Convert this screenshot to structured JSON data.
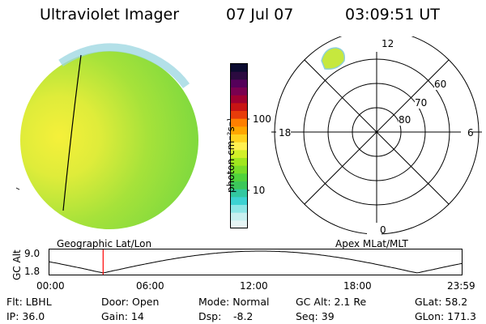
{
  "header": {
    "title": "Ultraviolet Imager",
    "date": "07 Jul 07",
    "time": "03:09:51 UT"
  },
  "colorbar": {
    "unit_label": "photon cm⁻²s⁻¹",
    "ticks": [
      "100",
      "10"
    ],
    "colors": [
      "#0b0b30",
      "#2b0a40",
      "#55005a",
      "#7a0050",
      "#a00030",
      "#c81414",
      "#e83c0a",
      "#ff7f00",
      "#ffa600",
      "#ffd21e",
      "#fff050",
      "#d2f028",
      "#a0e61e",
      "#78dc28",
      "#50d23c",
      "#3cc85a",
      "#32c8a0",
      "#3cd2d2",
      "#8ce6e6",
      "#c8f0f0",
      "#e6f5f5"
    ]
  },
  "polar": {
    "label_top": "12",
    "label_left": "18",
    "label_right": "6",
    "label_bottom": "0",
    "lat_labels": [
      "60",
      "70",
      "80"
    ]
  },
  "timeline": {
    "left_title": "Geographic Lat/Lon",
    "right_title": "Apex MLat/MLT",
    "axis_label": "GC Alt",
    "y_ticks": [
      "9.0",
      "1.8"
    ],
    "x_ticks": [
      "00:00",
      "06:00",
      "12:00",
      "18:00",
      "23:59"
    ],
    "marker_time_fraction": 0.131,
    "marker_color": "#ff0000"
  },
  "info": {
    "flt": "Flt: LBHL",
    "ip": "IP: 36.0",
    "door": "Door: Open",
    "gain": "Gain: 14",
    "mode": "Mode: Normal",
    "dsp_label": "Dsp:",
    "dsp_value": "-8.2",
    "gc_alt": "GC Alt: 2.1 Re",
    "seq": "Seq: 39",
    "glat": "GLat: 58.2",
    "glon": "GLon: 171.3"
  }
}
